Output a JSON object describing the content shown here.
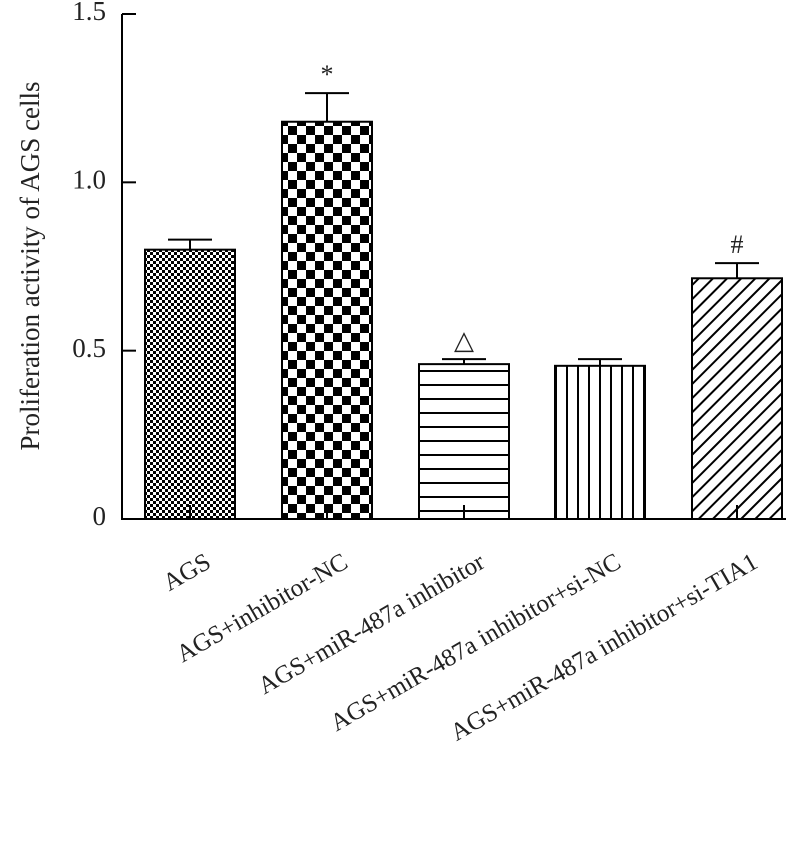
{
  "chart_data": {
    "type": "bar",
    "title": "",
    "ylabel": "Proliferation activity of AGS cells",
    "xlabel": "",
    "ylim": [
      0,
      1.5
    ],
    "yticks": [
      {
        "value": 0,
        "label": "0"
      },
      {
        "value": 0.5,
        "label": "0.5"
      },
      {
        "value": 1.0,
        "label": "1.0"
      },
      {
        "value": 1.5,
        "label": "1.5"
      }
    ],
    "grid": false,
    "categories": [
      "AGS",
      "AGS+inhibitor-NC",
      "AGS+miR-487a inhibitor",
      "AGS+miR-487a inhibitor+si-NC",
      "AGS+miR-487a inhibitor+si-TIA1"
    ],
    "values": [
      0.8,
      1.18,
      0.46,
      0.455,
      0.715
    ],
    "errors": [
      0.03,
      0.085,
      0.015,
      0.02,
      0.045
    ],
    "patterns": [
      "fine-checker",
      "checker",
      "horizontal-lines",
      "vertical-lines",
      "diagonal-lines"
    ],
    "significance": [
      "",
      "*",
      "△",
      "",
      "#"
    ]
  }
}
